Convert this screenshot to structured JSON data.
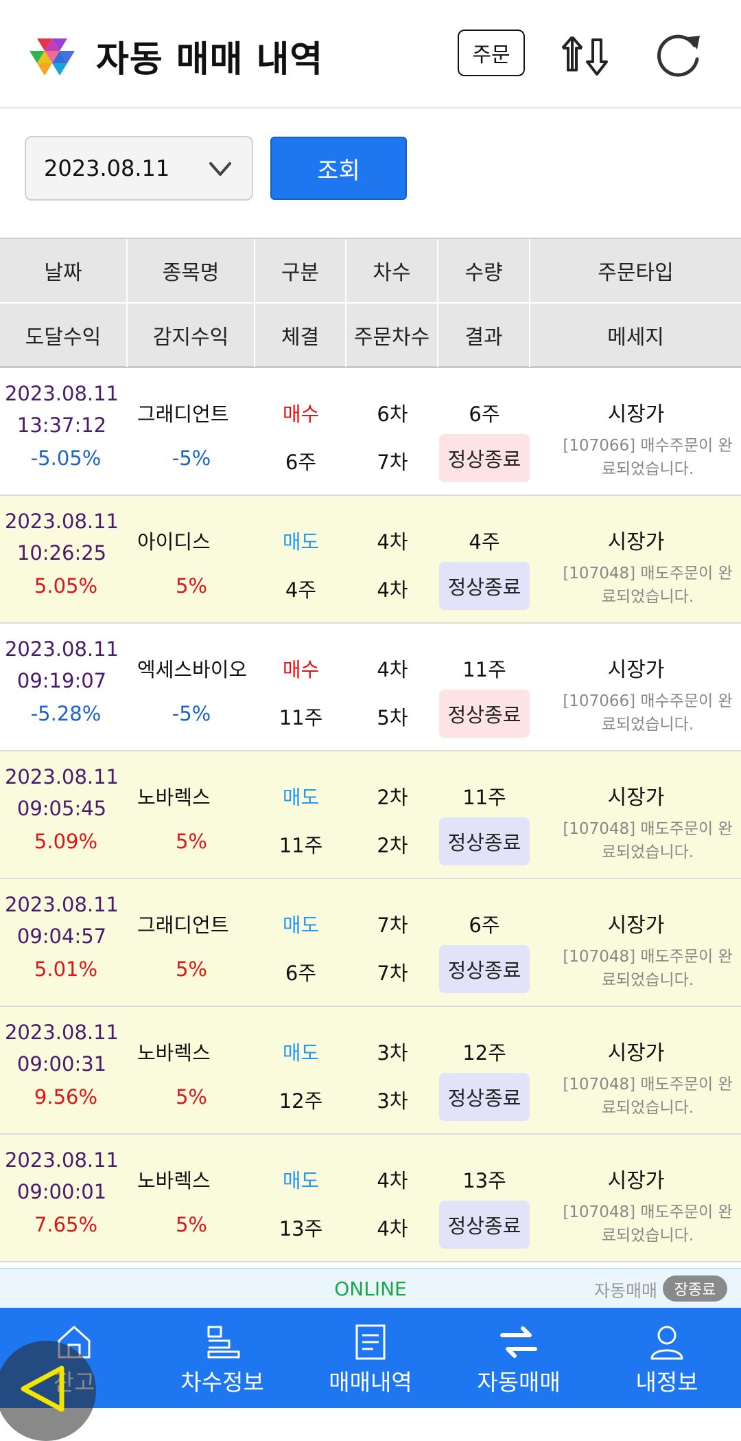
{
  "header": {
    "title": "자동 매매 내역",
    "order_label": "주문"
  },
  "search": {
    "date_value": "2023.08.11",
    "query_label": "조회"
  },
  "table": {
    "header_row1": [
      "날짜",
      "종목명",
      "구분",
      "차수",
      "수량",
      "주문타입"
    ],
    "header_row2": [
      "도달수익",
      "감지수익",
      "체결",
      "주문차수",
      "결과",
      "메세지"
    ],
    "rows": [
      {
        "date": "2023.08.11",
        "time": "13:37:12",
        "reach": "-5.05%",
        "name": "그래디언트",
        "detect": "-5%",
        "side": "매수",
        "filled": "6주",
        "round": "6차",
        "order_round": "7차",
        "qty": "6주",
        "result": "정상종료",
        "order_type": "시장가",
        "msg1": "[107066] 매수주문이 완",
        "msg2": "료되었습니다."
      },
      {
        "date": "2023.08.11",
        "time": "10:26:25",
        "reach": "5.05%",
        "name": "아이디스",
        "detect": "5%",
        "side": "매도",
        "filled": "4주",
        "round": "4차",
        "order_round": "4차",
        "qty": "4주",
        "result": "정상종료",
        "order_type": "시장가",
        "msg1": "[107048] 매도주문이 완",
        "msg2": "료되었습니다."
      },
      {
        "date": "2023.08.11",
        "time": "09:19:07",
        "reach": "-5.28%",
        "name": "엑세스바이오",
        "detect": "-5%",
        "side": "매수",
        "filled": "11주",
        "round": "4차",
        "order_round": "5차",
        "qty": "11주",
        "result": "정상종료",
        "order_type": "시장가",
        "msg1": "[107066] 매수주문이 완",
        "msg2": "료되었습니다."
      },
      {
        "date": "2023.08.11",
        "time": "09:05:45",
        "reach": "5.09%",
        "name": "노바렉스",
        "detect": "5%",
        "side": "매도",
        "filled": "11주",
        "round": "2차",
        "order_round": "2차",
        "qty": "11주",
        "result": "정상종료",
        "order_type": "시장가",
        "msg1": "[107048] 매도주문이 완",
        "msg2": "료되었습니다."
      },
      {
        "date": "2023.08.11",
        "time": "09:04:57",
        "reach": "5.01%",
        "name": "그래디언트",
        "detect": "5%",
        "side": "매도",
        "filled": "6주",
        "round": "7차",
        "order_round": "7차",
        "qty": "6주",
        "result": "정상종료",
        "order_type": "시장가",
        "msg1": "[107048] 매도주문이 완",
        "msg2": "료되었습니다."
      },
      {
        "date": "2023.08.11",
        "time": "09:00:31",
        "reach": "9.56%",
        "name": "노바렉스",
        "detect": "5%",
        "side": "매도",
        "filled": "12주",
        "round": "3차",
        "order_round": "3차",
        "qty": "12주",
        "result": "정상종료",
        "order_type": "시장가",
        "msg1": "[107048] 매도주문이 완",
        "msg2": "료되었습니다."
      },
      {
        "date": "2023.08.11",
        "time": "09:00:01",
        "reach": "7.65%",
        "name": "노바렉스",
        "detect": "5%",
        "side": "매도",
        "filled": "13주",
        "round": "4차",
        "order_round": "4차",
        "qty": "13주",
        "result": "정상종료",
        "order_type": "시장가",
        "msg1": "[107048] 매도주문이 완",
        "msg2": "료되었습니다."
      }
    ]
  },
  "status": {
    "connection": "ONLINE",
    "mode_label": "자동매매",
    "market_state": "장종료"
  },
  "nav": {
    "items": [
      {
        "label": "잔고",
        "icon": "home-icon"
      },
      {
        "label": "차수정보",
        "icon": "steps-icon"
      },
      {
        "label": "매매내역",
        "icon": "document-icon"
      },
      {
        "label": "자동매매",
        "icon": "exchange-icon"
      },
      {
        "label": "내정보",
        "icon": "user-icon"
      }
    ]
  },
  "colors": {
    "accent_blue": "#1e76f0",
    "buy_red": "#e01616",
    "sell_blue": "#2a98e8",
    "online_green": "#1ca64a",
    "row_yellow": "#fafadc"
  }
}
